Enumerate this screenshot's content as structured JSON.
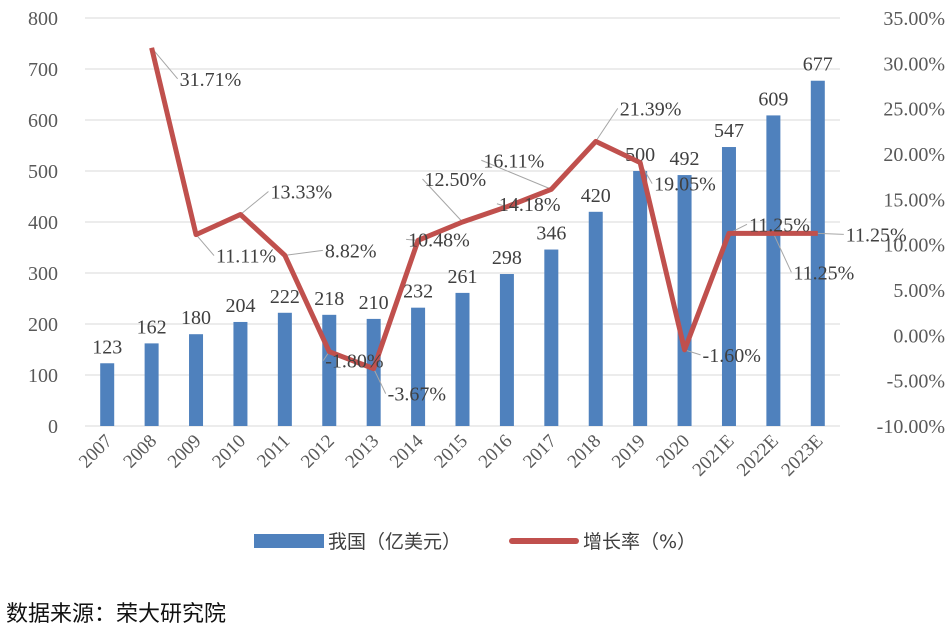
{
  "chart_data": {
    "type": "bar+line",
    "title": "",
    "categories": [
      "2007",
      "2008",
      "2009",
      "2010",
      "2011",
      "2012",
      "2013",
      "2014",
      "2015",
      "2016",
      "2017",
      "2018",
      "2019",
      "2020",
      "2021E",
      "2022E",
      "2023E"
    ],
    "series": [
      {
        "name": "我国（亿美元）",
        "type": "bar",
        "axis": "left",
        "color": "#4f81bd",
        "values": [
          123,
          162,
          180,
          204,
          222,
          218,
          210,
          232,
          261,
          298,
          346,
          420,
          500,
          492,
          547,
          609,
          677
        ]
      },
      {
        "name": "增长率（%）",
        "type": "line",
        "axis": "right",
        "color": "#c0504d",
        "values": [
          null,
          31.71,
          11.11,
          13.33,
          8.82,
          -1.8,
          -3.67,
          10.48,
          12.5,
          14.18,
          16.11,
          21.39,
          19.05,
          -1.6,
          11.25,
          11.25,
          11.25
        ],
        "labels": [
          null,
          "31.71%",
          "11.11%",
          "13.33%",
          "8.82%",
          "-1.80%",
          "-3.67%",
          "10.48%",
          "12.50%",
          "14.18%",
          "16.11%",
          "21.39%",
          "19.05%",
          "-1.60%",
          "11.25%",
          "11.25%",
          "11.25%"
        ]
      }
    ],
    "left_axis": {
      "ylim": [
        0,
        800
      ],
      "ticks": [
        "0",
        "100",
        "200",
        "300",
        "400",
        "500",
        "600",
        "700",
        "800"
      ]
    },
    "right_axis": {
      "ylim": [
        -10,
        35
      ],
      "ticks": [
        "-10.00%",
        "-5.00%",
        "0.00%",
        "5.00%",
        "10.00%",
        "15.00%",
        "20.00%",
        "25.00%",
        "30.00%",
        "35.00%"
      ]
    },
    "xlabel": "",
    "ylabel": "",
    "grid": true,
    "legend_position": "bottom"
  },
  "legend": {
    "bar_label": "我国（亿美元）",
    "line_label": "增长率（%）"
  },
  "source": "数据来源：荣大研究院"
}
